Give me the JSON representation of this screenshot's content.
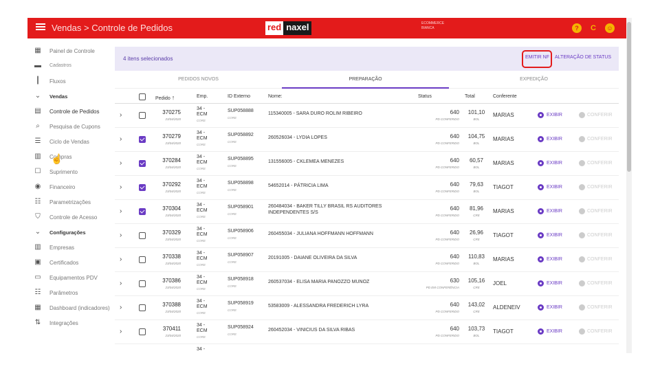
{
  "header": {
    "title": "Vendas > Controle de Pedidos",
    "logo_left": "red",
    "logo_right": "naxel",
    "store_line1": "ECOMMERCE",
    "store_line2": "BIANCA",
    "help_glyph": "?",
    "refresh_glyph": "C",
    "user_glyph": "☺",
    "bar_color": "#e31b1b"
  },
  "sidebar": {
    "items": [
      {
        "label": "Painel de Controle",
        "icon": "dashboard-icon"
      },
      {
        "label": "Cadastros",
        "icon": "folder-icon"
      },
      {
        "label": "Fluxos",
        "icon": "columns-icon"
      },
      {
        "label": "Vendas",
        "icon": "chevron-down-icon"
      },
      {
        "label": "Controle de Pedidos",
        "icon": "orders-icon"
      },
      {
        "label": "Pesquisa de Cupons",
        "icon": "search-icon"
      },
      {
        "label": "Ciclo de Vendas",
        "icon": "list-icon"
      },
      {
        "label": "Compras",
        "icon": "building-icon"
      },
      {
        "label": "Suprimento",
        "icon": "box-icon"
      },
      {
        "label": "Financeiro",
        "icon": "money-icon"
      },
      {
        "label": "Parametrizações",
        "icon": "sliders-icon"
      },
      {
        "label": "Controle de Acesso",
        "icon": "shield-icon"
      },
      {
        "label": "Configurações",
        "icon": "chevron-down-icon"
      },
      {
        "label": "Empresas",
        "icon": "building-icon"
      },
      {
        "label": "Certificados",
        "icon": "certificate-icon"
      },
      {
        "label": "Equipamentos PDV",
        "icon": "monitor-icon"
      },
      {
        "label": "Parâmetros",
        "icon": "sliders-icon"
      },
      {
        "label": "Dashboard (indicadores)",
        "icon": "dashboard-icon"
      },
      {
        "label": "Integrações",
        "icon": "transfer-icon"
      }
    ]
  },
  "selection": {
    "count_text": "4 itens selecionados",
    "emitir_nf": "EMITIR NF",
    "alteracao_status": "ALTERAÇÃO DE STATUS"
  },
  "tabs": [
    "PEDIDOS NOVOS",
    "PREPARAÇÃO",
    "EXPEDIÇÃO"
  ],
  "columns": {
    "pedido": "Pedido",
    "sort_glyph": "↑",
    "emp": "Emp.",
    "id_externo": "ID Externo",
    "nome": "Nome:",
    "status": "Status",
    "total": "Total",
    "conferente": "Conferente"
  },
  "actions": {
    "exibir": "EXIBIR",
    "conferir": "CONFERIR",
    "expand_glyph": "›"
  },
  "orders": [
    {
      "pedido": "370275",
      "date": "23/04/2020",
      "emp": "34 - ECM",
      "emp_sub": "CORE",
      "id_ext": "SUP058888",
      "id_sub": "CORE",
      "nome": "115340005 - SARA DURO ROLIM RIBEIRO",
      "status": "640",
      "status_label": "PD CONFERIDO",
      "total": "101,10",
      "total_label": "BOL",
      "conferente": "MARIAS",
      "checked": false
    },
    {
      "pedido": "370279",
      "date": "23/04/2020",
      "emp": "34 - ECM",
      "emp_sub": "CORE",
      "id_ext": "SUP058892",
      "id_sub": "CORE",
      "nome": "260526034 - LYDIA LOPES",
      "status": "640",
      "status_label": "PD CONFERIDO",
      "total": "104,75",
      "total_label": "BOL",
      "conferente": "MARIAS",
      "checked": true
    },
    {
      "pedido": "370284",
      "date": "23/04/2020",
      "emp": "34 - ECM",
      "emp_sub": "CORE",
      "id_ext": "SUP058895",
      "id_sub": "CORE",
      "nome": "131556005 - CKLEMEA MENEZES",
      "status": "640",
      "status_label": "PD CONFERIDO",
      "total": "60,57",
      "total_label": "BOL",
      "conferente": "MARIAS",
      "checked": true
    },
    {
      "pedido": "370292",
      "date": "23/04/2020",
      "emp": "34 - ECM",
      "emp_sub": "CORE",
      "id_ext": "SUP058898",
      "id_sub": "CORE",
      "nome": "54652014 - PÁTRICIA LIMA",
      "status": "640",
      "status_label": "PD CONFERIDO",
      "total": "79,63",
      "total_label": "BOL",
      "conferente": "TIAGOT",
      "checked": true
    },
    {
      "pedido": "370304",
      "date": "23/04/2020",
      "emp": "34 - ECM",
      "emp_sub": "CORE",
      "id_ext": "SUP058901",
      "id_sub": "CORE",
      "nome": "260484034 - BAKER TILLY BRASIL RS AUDITORES INDEPENDENTES S/S",
      "status": "640",
      "status_label": "PD CONFERIDO",
      "total": "81,96",
      "total_label": "CRE",
      "conferente": "MARIAS",
      "checked": true
    },
    {
      "pedido": "370329",
      "date": "23/04/2020",
      "emp": "34 - ECM",
      "emp_sub": "CORE",
      "id_ext": "SUP058906",
      "id_sub": "CORE",
      "nome": "260455034 - JULIANA HOFFMANN HOFFMANN",
      "status": "640",
      "status_label": "PD CONFERIDO",
      "total": "26,96",
      "total_label": "CRE",
      "conferente": "TIAGOT",
      "checked": false
    },
    {
      "pedido": "370338",
      "date": "23/04/2020",
      "emp": "34 - ECM",
      "emp_sub": "CORE",
      "id_ext": "SUP058907",
      "id_sub": "CORE",
      "nome": "20191005 - DAIANE OLIVEIRA DA SILVA",
      "status": "640",
      "status_label": "PD CONFERIDO",
      "total": "110,83",
      "total_label": "BOL",
      "conferente": "MARIAS",
      "checked": false
    },
    {
      "pedido": "370386",
      "date": "23/04/2020",
      "emp": "34 - ECM",
      "emp_sub": "CORE",
      "id_ext": "SUP058918",
      "id_sub": "CORE",
      "nome": "260537034 - ELISA MARIA PANOZZO MUNOZ",
      "status": "630",
      "status_label": "PD EM CONFERÊNCIA",
      "total": "105,16",
      "total_label": "CRE",
      "conferente": "JOEL",
      "checked": false
    },
    {
      "pedido": "370388",
      "date": "23/04/2020",
      "emp": "34 - ECM",
      "emp_sub": "CORE",
      "id_ext": "SUP058919",
      "id_sub": "CORE",
      "nome": "53583009 - ALESSANDRA FREDERICH LYRA",
      "status": "640",
      "status_label": "PD CONFERIDO",
      "total": "143,02",
      "total_label": "CRE",
      "conferente": "ALDENEIV",
      "checked": false
    },
    {
      "pedido": "370411",
      "date": "23/04/2020",
      "emp": "34 - ECM",
      "emp_sub": "CORE",
      "id_ext": "SUP058924",
      "id_sub": "CORE",
      "nome": "260452034 - VINICIUS DA SILVA RIBAS",
      "status": "640",
      "status_label": "PD CONFERIDO",
      "total": "103,73",
      "total_label": "BOL",
      "conferente": "TIAGOT",
      "checked": false
    }
  ],
  "partial_row": {
    "emp": "34 -"
  }
}
